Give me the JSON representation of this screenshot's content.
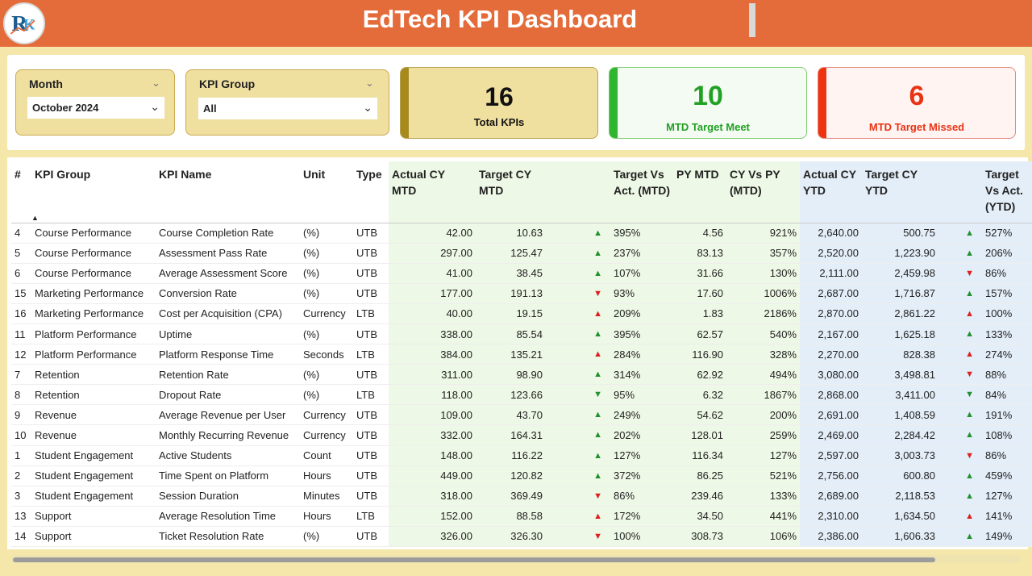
{
  "header": {
    "title": "EdTech KPI Dashboard",
    "logo_icon": "rk-logo-icon"
  },
  "filters": {
    "month": {
      "label": "Month",
      "value": "October 2024"
    },
    "kpi_group": {
      "label": "KPI Group",
      "value": "All"
    }
  },
  "cards": {
    "total": {
      "value": "16",
      "label": "Total KPIs",
      "accent": "#a68a1e",
      "bg": "#f0e0a0"
    },
    "meet": {
      "value": "10",
      "label": "MTD Target Meet",
      "accent": "#2fb52f",
      "bg": "#f4fbf2"
    },
    "missed": {
      "value": "6",
      "label": "MTD Target Missed",
      "accent": "#ee3311",
      "bg": "#fff4f2"
    }
  },
  "table": {
    "headers": {
      "num": "#",
      "group": "KPI Group",
      "name": "KPI Name",
      "unit": "Unit",
      "type": "Type",
      "actual_mtd": "Actual CY MTD",
      "target_mtd": "Target CY MTD",
      "tva_mtd": "Target Vs Act. (MTD)",
      "py_mtd": "PY MTD",
      "cy_vs_py": "CY Vs PY (MTD)",
      "actual_ytd": "Actual CY YTD",
      "target_ytd": "Target CY YTD",
      "tva_ytd": "Target Vs Act. (YTD)"
    },
    "rows": [
      {
        "num": "4",
        "group": "Course Performance",
        "name": "Course Completion Rate",
        "unit": "(%)",
        "type": "UTB",
        "actual_mtd": "42.00",
        "target_mtd": "10.63",
        "mtd_icon": "up",
        "tva_mtd": "395%",
        "py_mtd": "4.56",
        "cy_vs_py": "921%",
        "actual_ytd": "2,640.00",
        "target_ytd": "500.75",
        "ytd_icon": "up",
        "tva_ytd": "527%"
      },
      {
        "num": "5",
        "group": "Course Performance",
        "name": "Assessment Pass Rate",
        "unit": "(%)",
        "type": "UTB",
        "actual_mtd": "297.00",
        "target_mtd": "125.47",
        "mtd_icon": "up",
        "tva_mtd": "237%",
        "py_mtd": "83.13",
        "cy_vs_py": "357%",
        "actual_ytd": "2,520.00",
        "target_ytd": "1,223.90",
        "ytd_icon": "up",
        "tva_ytd": "206%"
      },
      {
        "num": "6",
        "group": "Course Performance",
        "name": "Average Assessment Score",
        "unit": "(%)",
        "type": "UTB",
        "actual_mtd": "41.00",
        "target_mtd": "38.45",
        "mtd_icon": "up",
        "tva_mtd": "107%",
        "py_mtd": "31.66",
        "cy_vs_py": "130%",
        "actual_ytd": "2,111.00",
        "target_ytd": "2,459.98",
        "ytd_icon": "dn",
        "tva_ytd": "86%"
      },
      {
        "num": "15",
        "group": "Marketing Performance",
        "name": "Conversion Rate",
        "unit": "(%)",
        "type": "UTB",
        "actual_mtd": "177.00",
        "target_mtd": "191.13",
        "mtd_icon": "dn",
        "tva_mtd": "93%",
        "py_mtd": "17.60",
        "cy_vs_py": "1006%",
        "actual_ytd": "2,687.00",
        "target_ytd": "1,716.87",
        "ytd_icon": "up",
        "tva_ytd": "157%"
      },
      {
        "num": "16",
        "group": "Marketing Performance",
        "name": "Cost per Acquisition (CPA)",
        "unit": "Currency",
        "type": "LTB",
        "actual_mtd": "40.00",
        "target_mtd": "19.15",
        "mtd_icon": "upr",
        "tva_mtd": "209%",
        "py_mtd": "1.83",
        "cy_vs_py": "2186%",
        "actual_ytd": "2,870.00",
        "target_ytd": "2,861.22",
        "ytd_icon": "upr",
        "tva_ytd": "100%"
      },
      {
        "num": "11",
        "group": "Platform Performance",
        "name": "Uptime",
        "unit": "(%)",
        "type": "UTB",
        "actual_mtd": "338.00",
        "target_mtd": "85.54",
        "mtd_icon": "up",
        "tva_mtd": "395%",
        "py_mtd": "62.57",
        "cy_vs_py": "540%",
        "actual_ytd": "2,167.00",
        "target_ytd": "1,625.18",
        "ytd_icon": "up",
        "tva_ytd": "133%"
      },
      {
        "num": "12",
        "group": "Platform Performance",
        "name": "Platform Response Time",
        "unit": "Seconds",
        "type": "LTB",
        "actual_mtd": "384.00",
        "target_mtd": "135.21",
        "mtd_icon": "upr",
        "tva_mtd": "284%",
        "py_mtd": "116.90",
        "cy_vs_py": "328%",
        "actual_ytd": "2,270.00",
        "target_ytd": "828.38",
        "ytd_icon": "upr",
        "tva_ytd": "274%"
      },
      {
        "num": "7",
        "group": "Retention",
        "name": "Retention Rate",
        "unit": "(%)",
        "type": "UTB",
        "actual_mtd": "311.00",
        "target_mtd": "98.90",
        "mtd_icon": "up",
        "tva_mtd": "314%",
        "py_mtd": "62.92",
        "cy_vs_py": "494%",
        "actual_ytd": "3,080.00",
        "target_ytd": "3,498.81",
        "ytd_icon": "dn",
        "tva_ytd": "88%"
      },
      {
        "num": "8",
        "group": "Retention",
        "name": "Dropout Rate",
        "unit": "(%)",
        "type": "LTB",
        "actual_mtd": "118.00",
        "target_mtd": "123.66",
        "mtd_icon": "dng",
        "tva_mtd": "95%",
        "py_mtd": "6.32",
        "cy_vs_py": "1867%",
        "actual_ytd": "2,868.00",
        "target_ytd": "3,411.00",
        "ytd_icon": "dng",
        "tva_ytd": "84%"
      },
      {
        "num": "9",
        "group": "Revenue",
        "name": "Average Revenue per User",
        "unit": "Currency",
        "type": "UTB",
        "actual_mtd": "109.00",
        "target_mtd": "43.70",
        "mtd_icon": "up",
        "tva_mtd": "249%",
        "py_mtd": "54.62",
        "cy_vs_py": "200%",
        "actual_ytd": "2,691.00",
        "target_ytd": "1,408.59",
        "ytd_icon": "up",
        "tva_ytd": "191%"
      },
      {
        "num": "10",
        "group": "Revenue",
        "name": "Monthly Recurring Revenue",
        "unit": "Currency",
        "type": "UTB",
        "actual_mtd": "332.00",
        "target_mtd": "164.31",
        "mtd_icon": "up",
        "tva_mtd": "202%",
        "py_mtd": "128.01",
        "cy_vs_py": "259%",
        "actual_ytd": "2,469.00",
        "target_ytd": "2,284.42",
        "ytd_icon": "up",
        "tva_ytd": "108%"
      },
      {
        "num": "1",
        "group": "Student Engagement",
        "name": "Active Students",
        "unit": "Count",
        "type": "UTB",
        "actual_mtd": "148.00",
        "target_mtd": "116.22",
        "mtd_icon": "up",
        "tva_mtd": "127%",
        "py_mtd": "116.34",
        "cy_vs_py": "127%",
        "actual_ytd": "2,597.00",
        "target_ytd": "3,003.73",
        "ytd_icon": "dn",
        "tva_ytd": "86%"
      },
      {
        "num": "2",
        "group": "Student Engagement",
        "name": "Time Spent on Platform",
        "unit": "Hours",
        "type": "UTB",
        "actual_mtd": "449.00",
        "target_mtd": "120.82",
        "mtd_icon": "up",
        "tva_mtd": "372%",
        "py_mtd": "86.25",
        "cy_vs_py": "521%",
        "actual_ytd": "2,756.00",
        "target_ytd": "600.80",
        "ytd_icon": "up",
        "tva_ytd": "459%"
      },
      {
        "num": "3",
        "group": "Student Engagement",
        "name": "Session Duration",
        "unit": "Minutes",
        "type": "UTB",
        "actual_mtd": "318.00",
        "target_mtd": "369.49",
        "mtd_icon": "dn",
        "tva_mtd": "86%",
        "py_mtd": "239.46",
        "cy_vs_py": "133%",
        "actual_ytd": "2,689.00",
        "target_ytd": "2,118.53",
        "ytd_icon": "up",
        "tva_ytd": "127%"
      },
      {
        "num": "13",
        "group": "Support",
        "name": "Average Resolution Time",
        "unit": "Hours",
        "type": "LTB",
        "actual_mtd": "152.00",
        "target_mtd": "88.58",
        "mtd_icon": "upr",
        "tva_mtd": "172%",
        "py_mtd": "34.50",
        "cy_vs_py": "441%",
        "actual_ytd": "2,310.00",
        "target_ytd": "1,634.50",
        "ytd_icon": "upr",
        "tva_ytd": "141%"
      },
      {
        "num": "14",
        "group": "Support",
        "name": "Ticket Resolution Rate",
        "unit": "(%)",
        "type": "UTB",
        "actual_mtd": "326.00",
        "target_mtd": "326.30",
        "mtd_icon": "dn",
        "tva_mtd": "100%",
        "py_mtd": "308.73",
        "cy_vs_py": "106%",
        "actual_ytd": "2,386.00",
        "target_ytd": "1,606.33",
        "ytd_icon": "up",
        "tva_ytd": "149%"
      }
    ]
  }
}
